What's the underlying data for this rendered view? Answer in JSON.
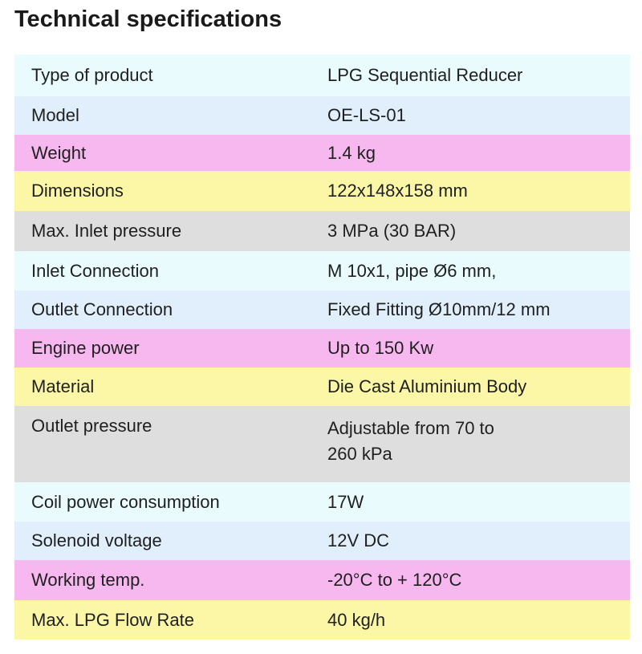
{
  "header": {
    "title": "Technical specifications"
  },
  "table": {
    "rows": [
      [
        "Type of product",
        "LPG Sequential Reducer"
      ],
      [
        "Model",
        "OE-LS-01"
      ],
      [
        "Weight",
        "1.4 kg"
      ],
      [
        "Dimensions",
        "122x148x158 mm"
      ],
      [
        "Max. Inlet pressure",
        "3 MPa (30 BAR)"
      ],
      [
        "Inlet Connection",
        "M 10x1, pipe Ø6 mm,"
      ],
      [
        "Outlet Connection",
        "Fixed Fitting Ø10mm/12 mm"
      ],
      [
        "Engine power",
        "Up to 150 Kw"
      ],
      [
        "Material",
        "Die Cast Aluminium Body"
      ],
      [
        "Outlet pressure",
        "Adjustable from 70 to\n260 kPa"
      ],
      [
        "Coil power consumption",
        "17W"
      ],
      [
        "Solenoid voltage",
        "12V DC"
      ],
      [
        "Working temp.",
        "-20°C to + 120°C"
      ],
      [
        "Max. LPG Flow Rate",
        "40 kg/h"
      ]
    ]
  }
}
